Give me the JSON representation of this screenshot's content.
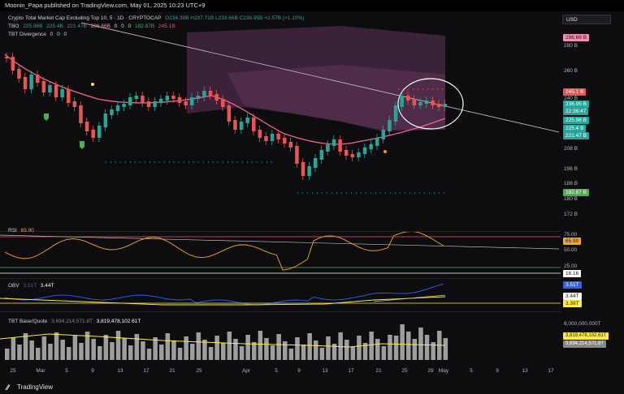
{
  "topbar": {
    "text": "Moonin_Papa published on TradingView.com, May 01, 2025 10:23 UTC+9"
  },
  "legend": {
    "title": "Crypto Total Market Cap Excluding Top 10, 5 · 1D · CRYPTOCAP",
    "ohlc": "O234.38B H237.71B L233.66B C236.95B +2.57B (+1.10%)",
    "tbo_label": "TBO",
    "tbo_values": [
      "225.96B",
      "225.4B",
      "221.47B",
      "286.66B",
      "0",
      "0",
      "0",
      "182.87B",
      "245.1B"
    ],
    "tbt_label": "TBT Divergence",
    "tbt_values": [
      "0",
      "0",
      "0"
    ]
  },
  "currency": "USD",
  "price_axis": [
    "280 B",
    "260 B",
    "245.1B",
    "240 B",
    "236.95 B",
    "22:36:47",
    "225.96 B",
    "225.4B",
    "221.47 B",
    "208 B",
    "196 B",
    "188 B",
    "182.87 B",
    "180 B",
    "172 B"
  ],
  "price_ticks": [
    "280 B",
    "260 B",
    "240 B",
    "208 B",
    "196 B",
    "188 B",
    "180 B",
    "172 B"
  ],
  "price_tags": {
    "high": "286.66 B",
    "resist": "245.1 B",
    "last": "236.95 B",
    "countdown": "22:36:47",
    "tbo1": "225.96 B",
    "tbo2": "225.4 B",
    "tbo3": "221.47 B",
    "low": "182.87 B"
  },
  "rsi": {
    "label": "RSI",
    "value": "65.90",
    "levels": [
      "75.00",
      "50.00",
      "25.00"
    ],
    "tag": "65.90",
    "low_tag": "16.16"
  },
  "obv": {
    "label": "OBV",
    "value1": "3.51T",
    "value2": "3.44T",
    "tags": [
      "3.51T",
      "3.44T",
      "3.39T"
    ]
  },
  "tbt_bq": {
    "label": "TBT Base/Quote",
    "value1": "3,694,214,571.8T",
    "value2": "3,819,478,102.61T",
    "axis": "8,000,000,000T",
    "tags": [
      "3,819,478,102.61T",
      "3,694,214,571.8T"
    ]
  },
  "time_axis": [
    "25",
    "Mar",
    "5",
    "9",
    "13",
    "17",
    "21",
    "25",
    "Apr",
    "5",
    "9",
    "13",
    "17",
    "21",
    "25",
    "29",
    "May",
    "5",
    "9",
    "13",
    "17"
  ],
  "brand": "TradingView",
  "colors": {
    "up": "#26a69a",
    "down": "#ef5350",
    "ma": "#f06292",
    "rsi": "#f5a623",
    "obv": "#2962ff",
    "base": "#ffeb3b"
  }
}
